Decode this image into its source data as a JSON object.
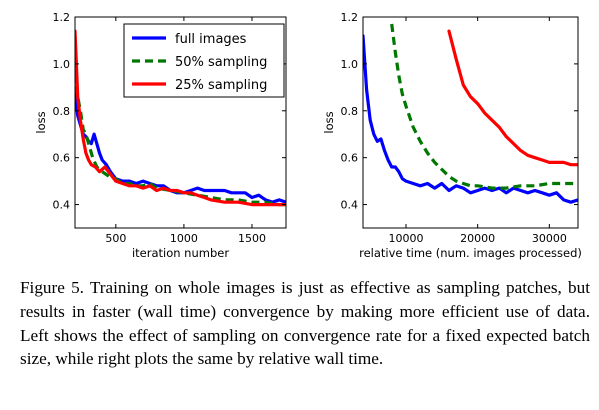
{
  "chart_data": [
    {
      "type": "line",
      "xlabel": "iteration number",
      "ylabel": "loss",
      "xlim": [
        200,
        1750
      ],
      "ylim": [
        0.3,
        1.2
      ],
      "xticks": [
        500,
        1000,
        1500
      ],
      "yticks": [
        0.4,
        0.6,
        0.8,
        1.0,
        1.2
      ],
      "ytick_labels": [
        "0.4",
        "0.6",
        "0.8",
        "1.0",
        "1.2"
      ],
      "grid": false,
      "legend": "top-right",
      "series": [
        {
          "name": "full images",
          "color": "#0000ff",
          "style": "solid",
          "x": [
            200,
            220,
            240,
            260,
            280,
            300,
            320,
            340,
            360,
            380,
            400,
            430,
            460,
            500,
            550,
            600,
            650,
            700,
            750,
            800,
            850,
            900,
            950,
            1000,
            1050,
            1100,
            1150,
            1200,
            1250,
            1300,
            1350,
            1400,
            1450,
            1500,
            1550,
            1600,
            1650,
            1700,
            1750
          ],
          "y": [
            0.89,
            0.78,
            0.74,
            0.7,
            0.69,
            0.67,
            0.66,
            0.7,
            0.66,
            0.62,
            0.59,
            0.57,
            0.54,
            0.51,
            0.5,
            0.5,
            0.49,
            0.5,
            0.49,
            0.48,
            0.48,
            0.46,
            0.45,
            0.45,
            0.46,
            0.47,
            0.46,
            0.46,
            0.46,
            0.46,
            0.45,
            0.45,
            0.45,
            0.43,
            0.44,
            0.42,
            0.41,
            0.42,
            0.41
          ]
        },
        {
          "name": "50% sampling",
          "color": "#007700",
          "style": "dashed",
          "x": [
            200,
            220,
            240,
            260,
            280,
            300,
            330,
            360,
            400,
            450,
            500,
            550,
            600,
            650,
            700,
            750,
            800,
            900,
            1000,
            1100,
            1200,
            1300,
            1400,
            1500,
            1600,
            1700,
            1750
          ],
          "y": [
            0.96,
            0.86,
            0.8,
            0.72,
            0.7,
            0.66,
            0.6,
            0.56,
            0.54,
            0.52,
            0.51,
            0.49,
            0.49,
            0.48,
            0.48,
            0.49,
            0.47,
            0.46,
            0.45,
            0.44,
            0.43,
            0.42,
            0.42,
            0.41,
            0.41,
            0.4,
            0.4
          ]
        },
        {
          "name": "25% sampling",
          "color": "#ff0000",
          "style": "solid",
          "x": [
            200,
            210,
            220,
            240,
            260,
            280,
            300,
            320,
            350,
            380,
            420,
            460,
            500,
            550,
            600,
            650,
            700,
            750,
            800,
            850,
            900,
            950,
            1000,
            1050,
            1100,
            1150,
            1200,
            1300,
            1400,
            1500,
            1600,
            1700,
            1750
          ],
          "y": [
            1.14,
            1.0,
            0.86,
            0.76,
            0.68,
            0.62,
            0.59,
            0.57,
            0.56,
            0.54,
            0.56,
            0.53,
            0.5,
            0.49,
            0.48,
            0.48,
            0.47,
            0.48,
            0.46,
            0.47,
            0.46,
            0.46,
            0.45,
            0.45,
            0.44,
            0.43,
            0.42,
            0.41,
            0.41,
            0.4,
            0.4,
            0.4,
            0.4
          ]
        }
      ]
    },
    {
      "type": "line",
      "xlabel": "relative time (num. images processed)",
      "ylabel": "loss",
      "xlim": [
        4000,
        34000
      ],
      "ylim": [
        0.3,
        1.2
      ],
      "xticks": [
        10000,
        20000,
        30000
      ],
      "yticks": [
        0.4,
        0.6,
        0.8,
        1.0,
        1.2
      ],
      "ytick_labels": [
        "0.4",
        "0.6",
        "0.8",
        "1.0",
        "1.2"
      ],
      "grid": false,
      "series": [
        {
          "name": "full images",
          "color": "#0000ff",
          "style": "solid",
          "x": [
            4000,
            4500,
            5000,
            5500,
            6000,
            6500,
            7000,
            7500,
            8000,
            8500,
            9000,
            9500,
            10000,
            11000,
            12000,
            13000,
            14000,
            15000,
            16000,
            17000,
            18000,
            19000,
            20000,
            21000,
            22000,
            23000,
            24000,
            25000,
            26000,
            27000,
            28000,
            29000,
            30000,
            31000,
            32000,
            33000,
            34000
          ],
          "y": [
            1.12,
            0.89,
            0.76,
            0.7,
            0.67,
            0.68,
            0.63,
            0.59,
            0.56,
            0.56,
            0.54,
            0.51,
            0.5,
            0.49,
            0.48,
            0.49,
            0.47,
            0.49,
            0.46,
            0.48,
            0.47,
            0.45,
            0.46,
            0.47,
            0.46,
            0.47,
            0.45,
            0.47,
            0.46,
            0.45,
            0.46,
            0.45,
            0.44,
            0.45,
            0.42,
            0.41,
            0.42
          ]
        },
        {
          "name": "50% sampling",
          "color": "#007700",
          "style": "dashed",
          "x": [
            8000,
            8500,
            9000,
            9500,
            10000,
            11000,
            12000,
            13000,
            14000,
            15000,
            16000,
            17000,
            18000,
            19000,
            20000,
            22000,
            24000,
            26000,
            28000,
            30000,
            32000,
            34000
          ],
          "y": [
            1.17,
            1.05,
            0.95,
            0.87,
            0.82,
            0.73,
            0.67,
            0.62,
            0.58,
            0.55,
            0.52,
            0.5,
            0.49,
            0.48,
            0.48,
            0.47,
            0.47,
            0.48,
            0.48,
            0.49,
            0.49,
            0.49
          ]
        },
        {
          "name": "25% sampling",
          "color": "#ff0000",
          "style": "solid",
          "x": [
            16000,
            17000,
            18000,
            19000,
            20000,
            21000,
            22000,
            23000,
            24000,
            25000,
            26000,
            27000,
            28000,
            29000,
            30000,
            31000,
            32000,
            33000,
            34000
          ],
          "y": [
            1.14,
            1.02,
            0.91,
            0.86,
            0.83,
            0.79,
            0.76,
            0.73,
            0.69,
            0.66,
            0.63,
            0.61,
            0.6,
            0.59,
            0.58,
            0.58,
            0.58,
            0.57,
            0.57
          ]
        }
      ]
    }
  ],
  "caption": "Figure 5.  Training on whole images is just as effective as sampling patches, but results in faster (wall time) convergence by making more efficient use of data.  Left shows the effect of sampling on convergence rate for a fixed expected batch size, while right plots the same by relative wall time."
}
